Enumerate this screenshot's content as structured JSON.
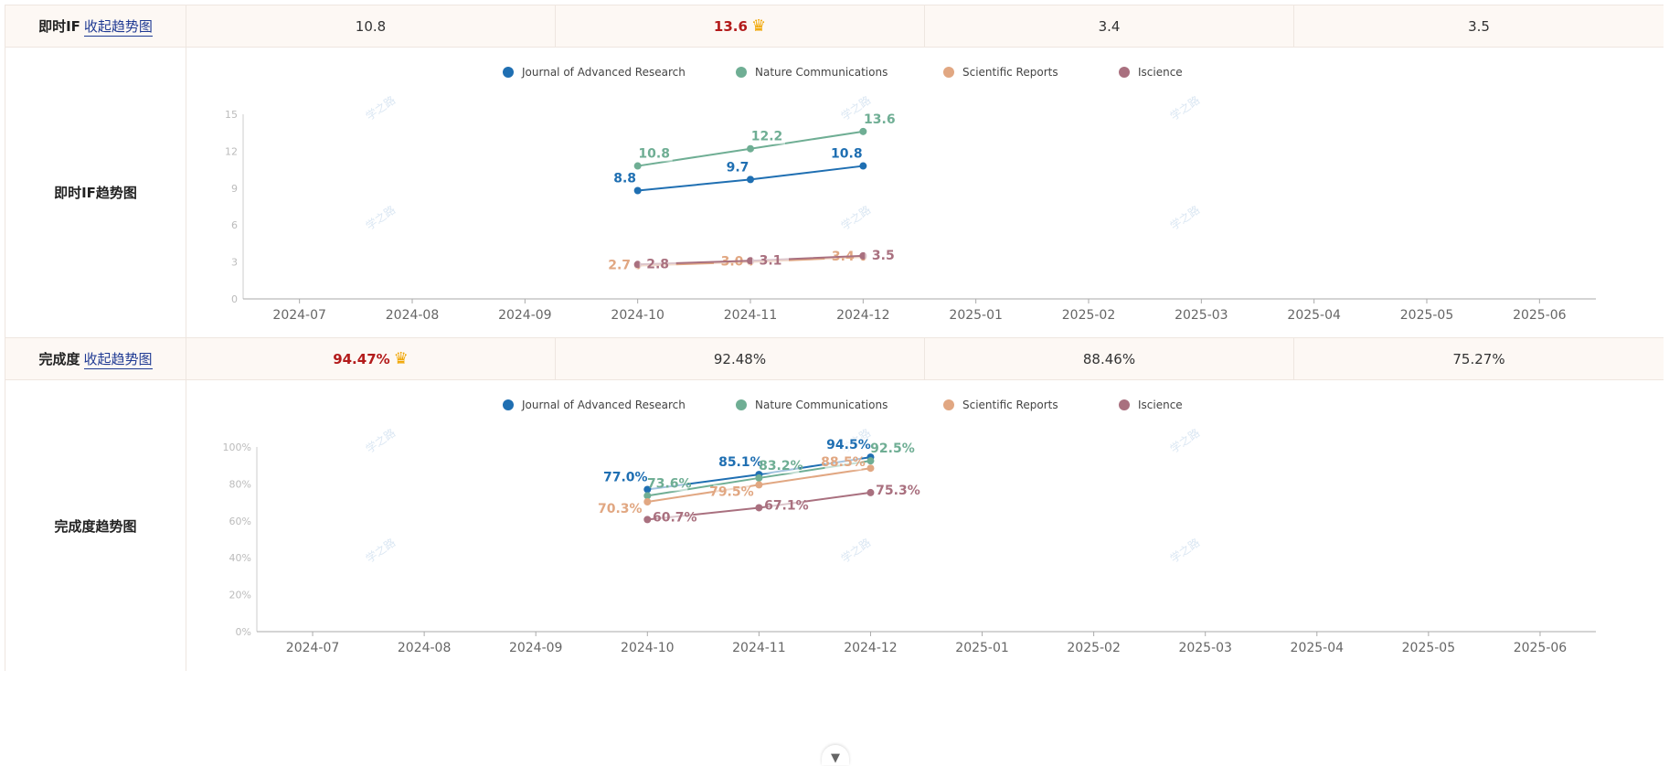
{
  "if_section": {
    "label": "即时IF",
    "toggle": "收起趋势图",
    "values": [
      "10.8",
      "13.6",
      "3.4",
      "3.5"
    ],
    "best_index": 1,
    "trend_label": "即时IF趋势图"
  },
  "completion_section": {
    "label": "完成度",
    "toggle": "收起趋势图",
    "values": [
      "94.47%",
      "92.48%",
      "88.46%",
      "75.27%"
    ],
    "best_index": 0,
    "trend_label": "完成度趋势图"
  },
  "crown_icon": "crown-icon",
  "watermark": "学之路",
  "chart_data": [
    {
      "type": "line",
      "title": "",
      "x": [
        "2024-07",
        "2024-08",
        "2024-09",
        "2024-10",
        "2024-11",
        "2024-12",
        "2025-01",
        "2025-02",
        "2025-03",
        "2025-04",
        "2025-05",
        "2025-06"
      ],
      "ylim": [
        0,
        15
      ],
      "yticks": [
        "0",
        "3",
        "6",
        "9",
        "12",
        "15"
      ],
      "legend": "top-center",
      "grid": false,
      "series": [
        {
          "name": "Journal of Advanced Research",
          "color": "#1f6fb2",
          "x": [
            "2024-10",
            "2024-11",
            "2024-12"
          ],
          "values": [
            8.8,
            9.7,
            10.8
          ],
          "labels": [
            "8.8",
            "9.7",
            "10.8"
          ]
        },
        {
          "name": "Nature Communications",
          "color": "#6fae94",
          "x": [
            "2024-10",
            "2024-11",
            "2024-12"
          ],
          "values": [
            10.8,
            12.2,
            13.6
          ],
          "labels": [
            "10.8",
            "12.2",
            "13.6"
          ]
        },
        {
          "name": "Scientific Reports",
          "color": "#e1a782",
          "x": [
            "2024-10",
            "2024-11",
            "2024-12"
          ],
          "values": [
            2.7,
            3.0,
            3.4
          ],
          "labels": [
            "2.7",
            "3.0",
            "3.4"
          ]
        },
        {
          "name": "Iscience",
          "color": "#a9707f",
          "x": [
            "2024-10",
            "2024-11",
            "2024-12"
          ],
          "values": [
            2.8,
            3.1,
            3.5
          ],
          "labels": [
            "2.8",
            "3.1",
            "3.5"
          ]
        }
      ]
    },
    {
      "type": "line",
      "title": "",
      "x": [
        "2024-07",
        "2024-08",
        "2024-09",
        "2024-10",
        "2024-11",
        "2024-12",
        "2025-01",
        "2025-02",
        "2025-03",
        "2025-04",
        "2025-05",
        "2025-06"
      ],
      "ylim": [
        0,
        100
      ],
      "yticks": [
        "0%",
        "20%",
        "40%",
        "60%",
        "80%",
        "100%"
      ],
      "legend": "top-center",
      "grid": false,
      "series": [
        {
          "name": "Journal of Advanced Research",
          "color": "#1f6fb2",
          "x": [
            "2024-10",
            "2024-11",
            "2024-12"
          ],
          "values": [
            77.0,
            85.1,
            94.5
          ],
          "labels": [
            "77.0%",
            "85.1%",
            "94.5%"
          ]
        },
        {
          "name": "Nature Communications",
          "color": "#6fae94",
          "x": [
            "2024-10",
            "2024-11",
            "2024-12"
          ],
          "values": [
            73.6,
            83.2,
            92.5
          ],
          "labels": [
            "73.6%",
            "83.2%",
            "92.5%"
          ]
        },
        {
          "name": "Scientific Reports",
          "color": "#e1a782",
          "x": [
            "2024-10",
            "2024-11",
            "2024-12"
          ],
          "values": [
            70.3,
            79.5,
            88.5
          ],
          "labels": [
            "70.3%",
            "79.5%",
            "88.5%"
          ]
        },
        {
          "name": "Iscience",
          "color": "#a9707f",
          "x": [
            "2024-10",
            "2024-11",
            "2024-12"
          ],
          "values": [
            60.7,
            67.1,
            75.3
          ],
          "labels": [
            "60.7%",
            "67.1%",
            "75.3%"
          ]
        }
      ]
    }
  ]
}
